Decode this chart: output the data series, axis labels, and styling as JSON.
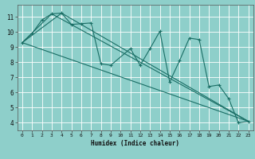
{
  "title": "",
  "xlabel": "Humidex (Indice chaleur)",
  "bg_color": "#8ecfca",
  "grid_color": "#ffffff",
  "line_color": "#1a6e65",
  "xlim": [
    -0.5,
    23.5
  ],
  "ylim": [
    3.5,
    11.8
  ],
  "xticks": [
    0,
    1,
    2,
    3,
    4,
    5,
    6,
    7,
    8,
    9,
    10,
    11,
    12,
    13,
    14,
    15,
    16,
    17,
    18,
    19,
    20,
    21,
    22,
    23
  ],
  "yticks": [
    4,
    5,
    6,
    7,
    8,
    9,
    10,
    11
  ],
  "series1_x": [
    0,
    1,
    2,
    3,
    4,
    5,
    6,
    7,
    8,
    9,
    11,
    12,
    13,
    14,
    15,
    16,
    17,
    18,
    19,
    20,
    21,
    22,
    23
  ],
  "series1_y": [
    9.3,
    9.9,
    10.8,
    11.2,
    11.25,
    10.5,
    10.55,
    10.6,
    7.9,
    7.8,
    8.9,
    7.8,
    8.9,
    10.05,
    6.7,
    8.1,
    9.6,
    9.5,
    6.4,
    6.5,
    5.6,
    4.0,
    4.1
  ],
  "line2_x": [
    0,
    23
  ],
  "line2_y": [
    9.3,
    4.1
  ],
  "line3_x": [
    0,
    3,
    23
  ],
  "line3_y": [
    9.3,
    11.2,
    4.1
  ],
  "line4_x": [
    0,
    4,
    23
  ],
  "line4_y": [
    9.3,
    11.25,
    4.1
  ]
}
